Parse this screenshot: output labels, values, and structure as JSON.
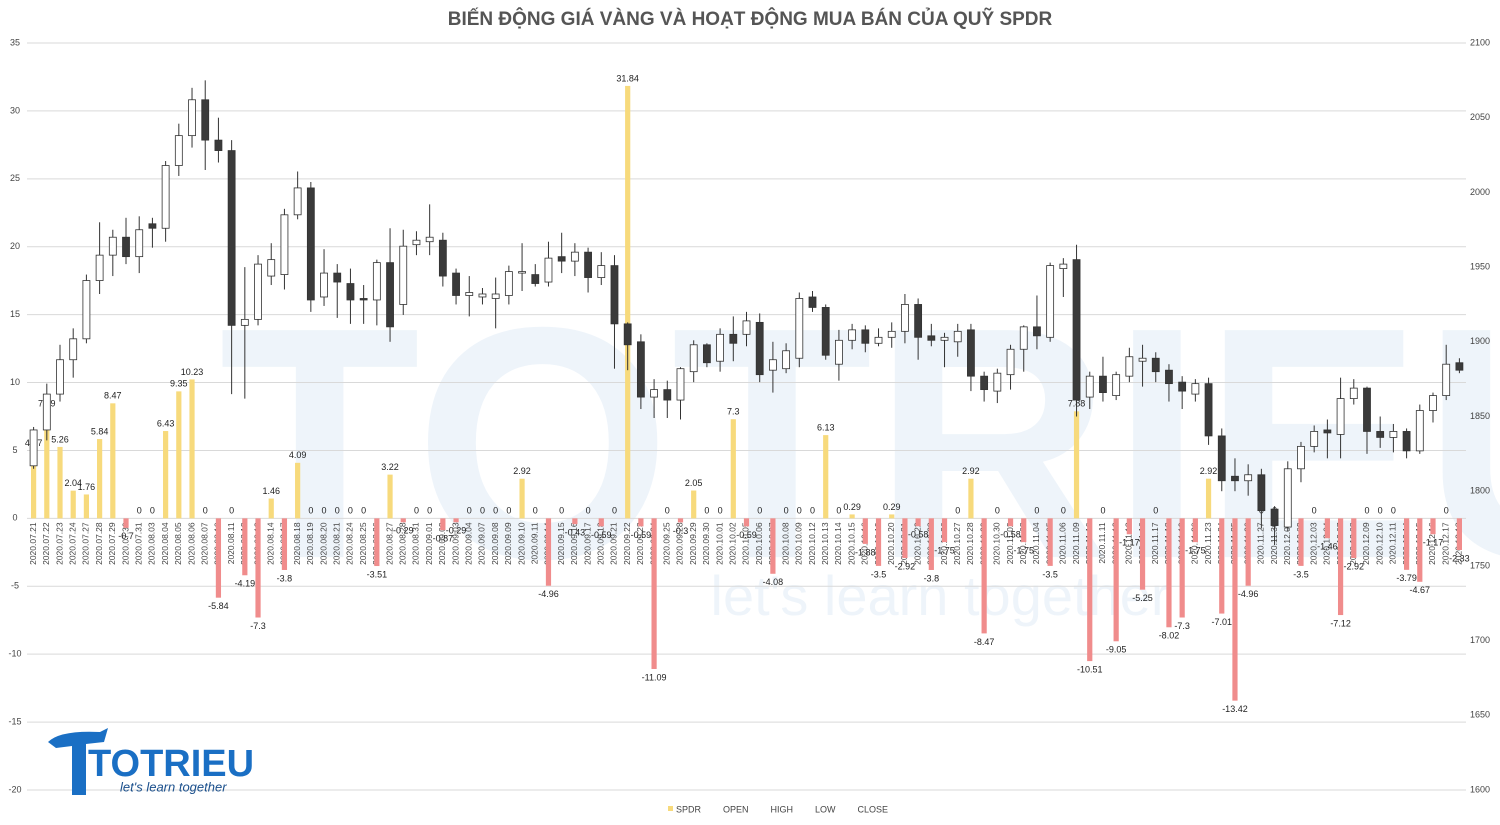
{
  "chart_data": {
    "type": "combo",
    "title": "BIẾN ĐỘNG GIÁ VÀNG VÀ HOẠT ĐỘNG MUA BÁN CỦA QUỸ SPDR",
    "categories": [
      "2020.07.21",
      "2020.07.22",
      "2020.07.23",
      "2020.07.24",
      "2020.07.27",
      "2020.07.28",
      "2020.07.29",
      "2020.07.30",
      "2020.07.31",
      "2020.08.03",
      "2020.08.04",
      "2020.08.05",
      "2020.08.06",
      "2020.08.07",
      "2020.08.10",
      "2020.08.11",
      "2020.08.12",
      "2020.08.13",
      "2020.08.14",
      "2020.08.17",
      "2020.08.18",
      "2020.08.19",
      "2020.08.20",
      "2020.08.21",
      "2020.08.24",
      "2020.08.25",
      "2020.08.26",
      "2020.08.27",
      "2020.08.28",
      "2020.08.31",
      "2020.09.01",
      "2020.09.02",
      "2020.09.03",
      "2020.09.04",
      "2020.09.07",
      "2020.09.08",
      "2020.09.09",
      "2020.09.10",
      "2020.09.11",
      "2020.09.14",
      "2020.09.15",
      "2020.09.16",
      "2020.09.17",
      "2020.09.18",
      "2020.09.21",
      "2020.09.22",
      "2020.09.23",
      "2020.09.24",
      "2020.09.25",
      "2020.09.28",
      "2020.09.29",
      "2020.09.30",
      "2020.10.01",
      "2020.10.02",
      "2020.10.05",
      "2020.10.06",
      "2020.10.07",
      "2020.10.08",
      "2020.10.09",
      "2020.10.12",
      "2020.10.13",
      "2020.10.14",
      "2020.10.15",
      "2020.10.16",
      "2020.10.19",
      "2020.10.20",
      "2020.10.21",
      "2020.10.22",
      "2020.10.23",
      "2020.10.26",
      "2020.10.27",
      "2020.10.28",
      "2020.10.29",
      "2020.10.30",
      "2020.11.02",
      "2020.11.03",
      "2020.11.04",
      "2020.11.05",
      "2020.11.06",
      "2020.11.09",
      "2020.11.10",
      "2020.11.11",
      "2020.11.12",
      "2020.11.13",
      "2020.11.16",
      "2020.11.17",
      "2020.11.18",
      "2020.11.19",
      "2020.11.20",
      "2020.11.23",
      "2020.11.24",
      "2020.11.25",
      "2020.11.26",
      "2020.11.27",
      "2020.11.30",
      "2020.12.01",
      "2020.12.02",
      "2020.12.03",
      "2020.12.04",
      "2020.12.07",
      "2020.12.08",
      "2020.12.09",
      "2020.12.10",
      "2020.12.11",
      "2020.12.14",
      "2020.12.15",
      "2020.12.16",
      "2020.12.17",
      "2020.12.18"
    ],
    "series": [
      {
        "name": "SPDR",
        "type": "bar",
        "color": "#f7da7c",
        "negative_color": "#f08c8c",
        "values": [
          4.97,
          7.89,
          5.26,
          2.04,
          1.76,
          5.84,
          8.47,
          -0.7,
          0,
          0,
          6.43,
          9.35,
          10.23,
          0,
          -5.84,
          0,
          -4.19,
          -7.3,
          1.46,
          -3.8,
          4.09,
          0,
          0,
          0,
          0,
          0,
          -3.51,
          3.22,
          -0.29,
          0,
          0,
          -0.87,
          -0.29,
          0,
          0,
          0,
          0,
          2.92,
          0,
          -4.96,
          0,
          -0.43,
          0,
          -0.59,
          0,
          31.84,
          -0.59,
          -11.09,
          0,
          -0.3,
          2.05,
          0,
          0,
          7.3,
          -0.59,
          0,
          -4.08,
          0,
          0,
          0,
          6.13,
          0,
          0.29,
          -1.88,
          -3.5,
          0.29,
          -2.92,
          -0.58,
          -3.8,
          -1.75,
          0,
          2.92,
          -8.47,
          0,
          -0.58,
          -1.75,
          0,
          -3.5,
          0,
          7.88,
          -10.51,
          0,
          -9.05,
          -1.17,
          -5.25,
          0,
          -8.02,
          -7.3,
          -1.75,
          2.92,
          -7.01,
          -13.42,
          -4.96,
          0,
          0,
          0,
          -3.5,
          0,
          -1.46,
          -7.12,
          -2.92,
          0,
          0,
          0,
          -3.79,
          -4.67,
          -1.17,
          0,
          -2.33
        ]
      },
      {
        "name": "OPEN",
        "axis": "y2",
        "values": [
          1817,
          1841,
          1865,
          1888,
          1902,
          1941,
          1958,
          1970,
          1957,
          1979,
          1976,
          2018,
          2038,
          2062,
          2035,
          2028,
          1911,
          1915,
          1944,
          1945,
          1985,
          2003,
          1930,
          1946,
          1939,
          1929,
          1928,
          1953,
          1925,
          1965,
          1967,
          1968,
          1946,
          1931,
          1930,
          1929,
          1931,
          1946,
          1945,
          1940,
          1957,
          1954,
          1960,
          1943,
          1951,
          1912,
          1900,
          1863,
          1868,
          1861,
          1880,
          1898,
          1887,
          1905,
          1905,
          1913,
          1881,
          1882,
          1889,
          1930,
          1923,
          1885,
          1901,
          1908,
          1899,
          1903,
          1907,
          1925,
          1904,
          1901,
          1900,
          1908,
          1877,
          1867,
          1878,
          1895,
          1910,
          1903,
          1949,
          1955,
          1863,
          1877,
          1864,
          1877,
          1887,
          1889,
          1881,
          1873,
          1865,
          1872,
          1837,
          1810,
          1807,
          1811,
          1788,
          1776,
          1815,
          1830,
          1841,
          1838,
          1862,
          1869,
          1840,
          1836,
          1840,
          1827,
          1854,
          1864,
          1886
        ]
      },
      {
        "name": "HIGH",
        "axis": "y2",
        "values": [
          1843,
          1872,
          1898,
          1909,
          1945,
          1980,
          1975,
          1983,
          1984,
          1983,
          2021,
          2046,
          2070,
          2075,
          2050,
          2035,
          1950,
          1958,
          1966,
          1989,
          2014,
          2007,
          1962,
          1952,
          1949,
          1938,
          1955,
          1976,
          1975,
          1974,
          1992,
          1973,
          1949,
          1944,
          1936,
          1943,
          1951,
          1966,
          1952,
          1967,
          1973,
          1966,
          1963,
          1960,
          1958,
          1913,
          1905,
          1875,
          1874,
          1883,
          1901,
          1899,
          1909,
          1917,
          1920,
          1919,
          1900,
          1899,
          1933,
          1934,
          1925,
          1908,
          1912,
          1911,
          1909,
          1913,
          1932,
          1929,
          1912,
          1906,
          1912,
          1912,
          1880,
          1882,
          1898,
          1911,
          1931,
          1953,
          1956,
          1965,
          1880,
          1890,
          1880,
          1896,
          1898,
          1893,
          1885,
          1877,
          1875,
          1876,
          1842,
          1822,
          1818,
          1815,
          1790,
          1820,
          1833,
          1844,
          1848,
          1876,
          1875,
          1870,
          1850,
          1845,
          1842,
          1858,
          1866,
          1898,
          1889
        ]
      },
      {
        "name": "LOW",
        "axis": "y2",
        "values": [
          1815,
          1834,
          1860,
          1876,
          1899,
          1932,
          1944,
          1952,
          1946,
          1963,
          1967,
          2011,
          2030,
          2015,
          2020,
          1865,
          1862,
          1911,
          1938,
          1935,
          1982,
          1920,
          1924,
          1916,
          1912,
          1912,
          1911,
          1900,
          1918,
          1958,
          1958,
          1937,
          1925,
          1917,
          1925,
          1909,
          1925,
          1934,
          1937,
          1937,
          1946,
          1944,
          1933,
          1938,
          1882,
          1881,
          1855,
          1849,
          1849,
          1848,
          1873,
          1883,
          1880,
          1887,
          1897,
          1873,
          1866,
          1879,
          1883,
          1920,
          1888,
          1874,
          1895,
          1893,
          1897,
          1896,
          1899,
          1888,
          1897,
          1883,
          1890,
          1867,
          1860,
          1859,
          1868,
          1880,
          1895,
          1900,
          1930,
          1850,
          1855,
          1860,
          1861,
          1873,
          1870,
          1873,
          1860,
          1855,
          1860,
          1831,
          1800,
          1800,
          1797,
          1775,
          1764,
          1773,
          1806,
          1826,
          1822,
          1822,
          1858,
          1825,
          1829,
          1826,
          1822,
          1825,
          1846,
          1861,
          1879
        ]
      },
      {
        "name": "CLOSE",
        "axis": "y2",
        "values": [
          1841,
          1865,
          1888,
          1902,
          1941,
          1958,
          1970,
          1957,
          1975,
          1976,
          2018,
          2038,
          2062,
          2035,
          2028,
          1911,
          1915,
          1952,
          1955,
          1985,
          2003,
          1928,
          1946,
          1940,
          1928,
          1928,
          1953,
          1910,
          1964,
          1968,
          1970,
          1944,
          1931,
          1933,
          1932,
          1932,
          1947,
          1947,
          1939,
          1956,
          1954,
          1960,
          1943,
          1951,
          1912,
          1898,
          1863,
          1868,
          1861,
          1882,
          1898,
          1886,
          1905,
          1899,
          1914,
          1878,
          1888,
          1894,
          1929,
          1923,
          1891,
          1901,
          1908,
          1899,
          1903,
          1907,
          1925,
          1903,
          1901,
          1903,
          1907,
          1877,
          1868,
          1879,
          1895,
          1910,
          1904,
          1951,
          1952,
          1861,
          1877,
          1866,
          1878,
          1890,
          1889,
          1880,
          1872,
          1867,
          1872,
          1837,
          1807,
          1807,
          1811,
          1787,
          1777,
          1815,
          1830,
          1840,
          1839,
          1862,
          1869,
          1840,
          1836,
          1840,
          1827,
          1854,
          1864,
          1885,
          1881
        ]
      }
    ],
    "candle_up_color": "#ffffff",
    "candle_down_color": "#3a3a3a",
    "candle_edge_color": "#333333",
    "ylim": [
      -20,
      35
    ],
    "yticks": [
      -20,
      -15,
      -10,
      -5,
      0,
      5,
      10,
      15,
      20,
      25,
      30,
      35
    ],
    "y2lim": [
      1600,
      2100
    ],
    "y2ticks": [
      1600,
      1650,
      1700,
      1750,
      1800,
      1850,
      1900,
      1950,
      2000,
      2050,
      2100
    ],
    "grid": true,
    "legend": "bottom"
  },
  "logo": {
    "name": "TOTRIEU",
    "tagline": "let's learn together"
  }
}
